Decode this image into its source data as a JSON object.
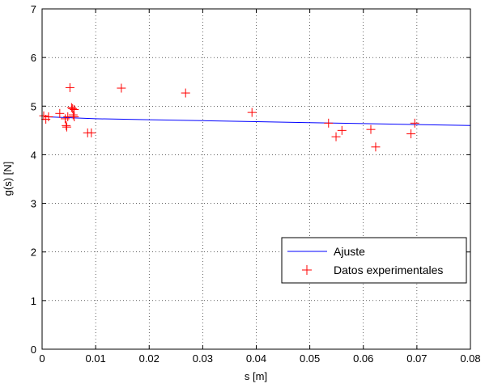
{
  "chart_data": {
    "type": "scatter",
    "xlabel": "s [m]",
    "ylabel": "g(s) [N]",
    "xlim": [
      0,
      0.08
    ],
    "ylim": [
      0,
      7
    ],
    "xticks": [
      0,
      0.01,
      0.02,
      0.03,
      0.04,
      0.05,
      0.06,
      0.07,
      0.08
    ],
    "xtick_labels": [
      "0",
      "0.01",
      "0.02",
      "0.03",
      "0.04",
      "0.05",
      "0.06",
      "0.07",
      "0.08"
    ],
    "yticks": [
      0,
      1,
      2,
      3,
      4,
      5,
      6,
      7
    ],
    "ytick_labels": [
      "0",
      "1",
      "2",
      "3",
      "4",
      "5",
      "6",
      "7"
    ],
    "grid": true,
    "legend_position": "lower-right",
    "series": [
      {
        "name": "Ajuste",
        "kind": "line",
        "color": "#0000ff",
        "x": [
          0.0008,
          0.01,
          0.02,
          0.03,
          0.04,
          0.05,
          0.06,
          0.07,
          0.08
        ],
        "y": [
          4.78,
          4.74,
          4.72,
          4.7,
          4.68,
          4.66,
          4.64,
          4.62,
          4.6
        ]
      },
      {
        "name": "Datos experimentales",
        "kind": "scatter",
        "marker": "+",
        "color": "#ff0000",
        "x": [
          0.0003,
          0.0007,
          0.0012,
          0.0033,
          0.0043,
          0.0045,
          0.0046,
          0.0048,
          0.0052,
          0.0055,
          0.0057,
          0.0058,
          0.006,
          0.006,
          0.0085,
          0.0092,
          0.0148,
          0.0268,
          0.0392,
          0.0535,
          0.0549,
          0.056,
          0.0614,
          0.0623,
          0.0689,
          0.0696
        ],
        "y": [
          4.8,
          4.73,
          4.78,
          4.85,
          4.74,
          4.6,
          4.57,
          4.78,
          5.38,
          4.97,
          4.95,
          4.82,
          4.93,
          4.78,
          4.45,
          4.45,
          5.37,
          5.27,
          4.87,
          4.65,
          4.37,
          4.5,
          4.52,
          4.16,
          4.43,
          4.65
        ]
      }
    ]
  }
}
